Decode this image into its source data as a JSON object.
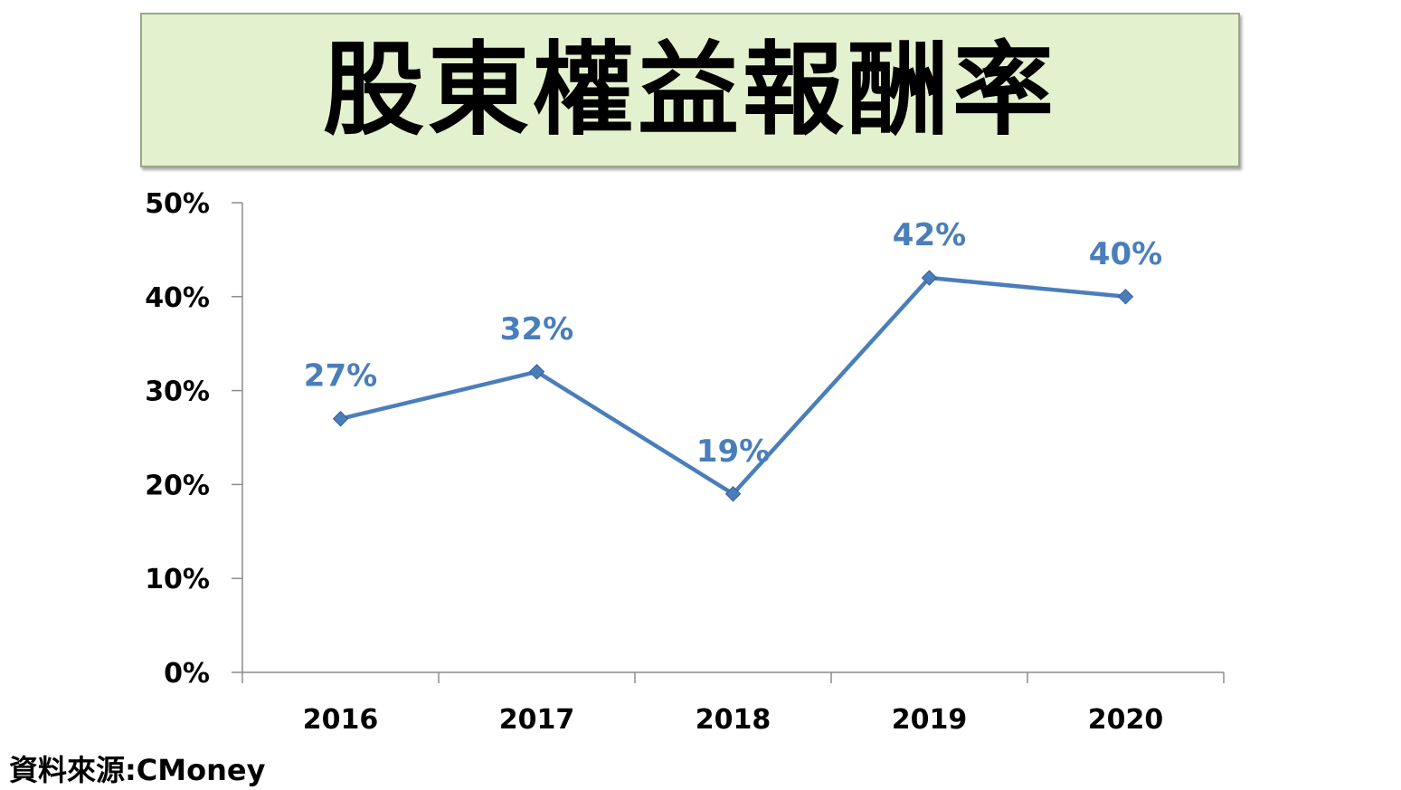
{
  "colors": {
    "series": "#4a7ebb",
    "title_bg": "#e4f1cf",
    "axis": "#8c8c8c"
  },
  "source": "資料來源:CMoney",
  "chart_data": {
    "type": "line",
    "title": "股東權益報酬率",
    "xlabel": "",
    "ylabel": "",
    "categories": [
      "2016",
      "2017",
      "2018",
      "2019",
      "2020"
    ],
    "series": [
      {
        "values": [
          27,
          32,
          19,
          42,
          40
        ],
        "labels": [
          "27%",
          "32%",
          "19%",
          "42%",
          "40%"
        ]
      }
    ],
    "ylim": [
      0,
      50
    ],
    "yticks": [
      0,
      10,
      20,
      30,
      40,
      50
    ],
    "ytick_labels": [
      "0%",
      "10%",
      "20%",
      "30%",
      "40%",
      "50%"
    ],
    "grid": false,
    "legend": "none",
    "marker": "diamond"
  }
}
